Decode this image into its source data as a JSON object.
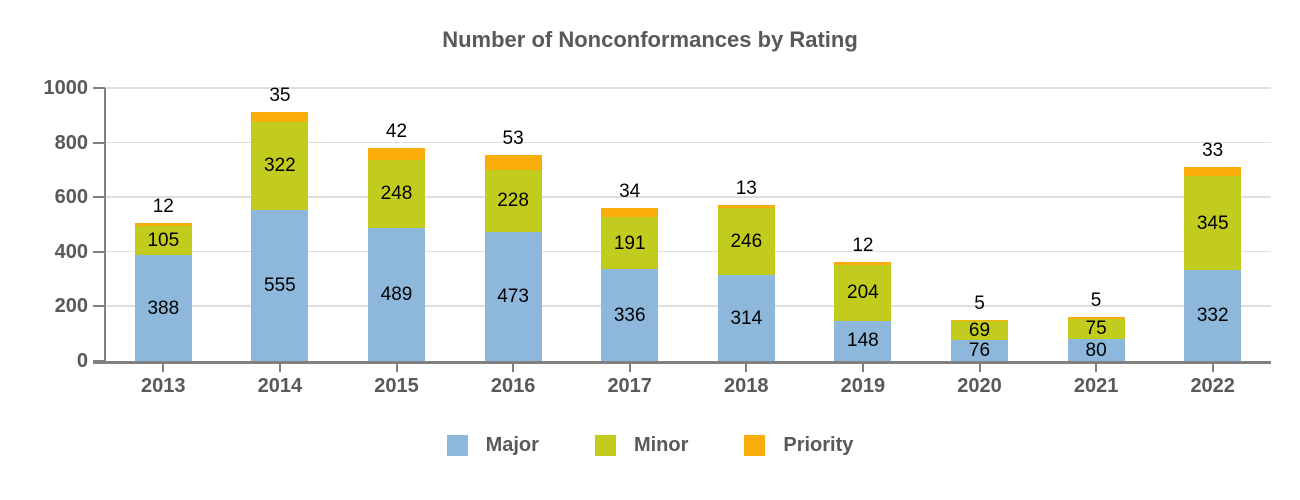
{
  "chart_data": {
    "type": "bar",
    "stacked": true,
    "title": "Number of Nonconformances by Rating",
    "categories": [
      "2013",
      "2014",
      "2015",
      "2016",
      "2017",
      "2018",
      "2019",
      "2020",
      "2021",
      "2022"
    ],
    "series": [
      {
        "name": "Major",
        "color": "#8DB8DC",
        "values": [
          388,
          555,
          489,
          473,
          336,
          314,
          148,
          76,
          80,
          332
        ]
      },
      {
        "name": "Minor",
        "color": "#C2CC1F",
        "values": [
          105,
          322,
          248,
          228,
          191,
          246,
          204,
          69,
          75,
          345
        ]
      },
      {
        "name": "Priority",
        "color": "#FAAD0A",
        "values": [
          12,
          35,
          42,
          53,
          34,
          13,
          12,
          5,
          5,
          33
        ]
      }
    ],
    "totals": [
      505,
      912,
      779,
      754,
      561,
      573,
      364,
      150,
      160,
      710
    ],
    "ylim": [
      0,
      1000
    ],
    "yticks": [
      0,
      200,
      400,
      600,
      800,
      1000
    ],
    "grid": true,
    "legend_position": "bottom",
    "legend_labels": [
      "Major",
      "Minor",
      "Priority"
    ],
    "colors": {
      "axis_text": "#595959",
      "axis_line": "#808080",
      "gridline": "#DEDEDE",
      "data_label": "#000000",
      "background": "#FFFFFF"
    }
  }
}
